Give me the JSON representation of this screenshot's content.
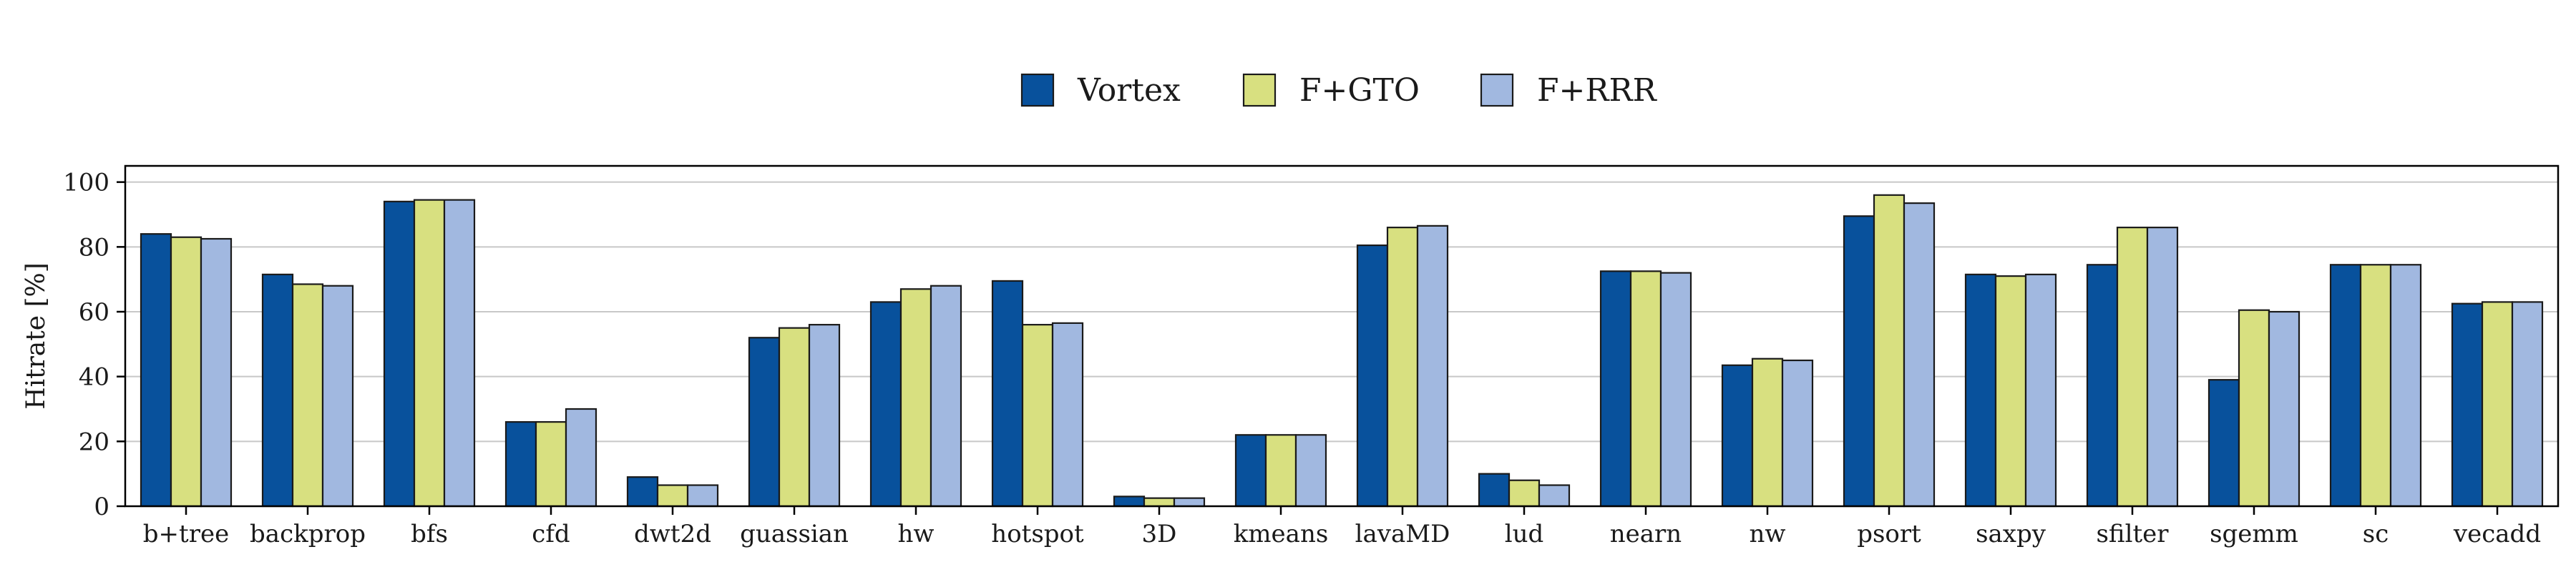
{
  "chart_data": {
    "type": "bar",
    "ylabel": "Hitrate [%]",
    "ylim": [
      0,
      105
    ],
    "yticks": [
      0,
      20,
      40,
      60,
      80,
      100
    ],
    "grid": "y",
    "legend_position": "top-center",
    "categories": [
      "b+tree",
      "backprop",
      "bfs",
      "cfd",
      "dwt2d",
      "guassian",
      "hw",
      "hotspot",
      "3D",
      "kmeans",
      "lavaMD",
      "lud",
      "nearn",
      "nw",
      "psort",
      "saxpy",
      "sfilter",
      "sgemm",
      "sc",
      "vecadd"
    ],
    "series": [
      {
        "name": "Vortex",
        "color": "#08519c",
        "values": [
          84,
          71.5,
          94,
          26,
          9,
          52,
          63,
          69.5,
          3,
          22,
          80.5,
          10,
          72.5,
          43.5,
          89.5,
          71.5,
          74.5,
          39,
          74.5,
          62.5
        ]
      },
      {
        "name": "F+GTO",
        "color": "#d8e080",
        "values": [
          83,
          68.5,
          94.5,
          26,
          6.5,
          55,
          67,
          56,
          2.5,
          22,
          86,
          8,
          72.5,
          45.5,
          96,
          71,
          86,
          60.5,
          74.5,
          63
        ]
      },
      {
        "name": "F+RRR",
        "color": "#a1b8e0",
        "values": [
          82.5,
          68,
          94.5,
          30,
          6.5,
          56,
          68,
          56.5,
          2.5,
          22,
          86.5,
          6.5,
          72,
          45,
          93.5,
          71.5,
          86,
          60,
          74.5,
          63
        ]
      }
    ]
  }
}
